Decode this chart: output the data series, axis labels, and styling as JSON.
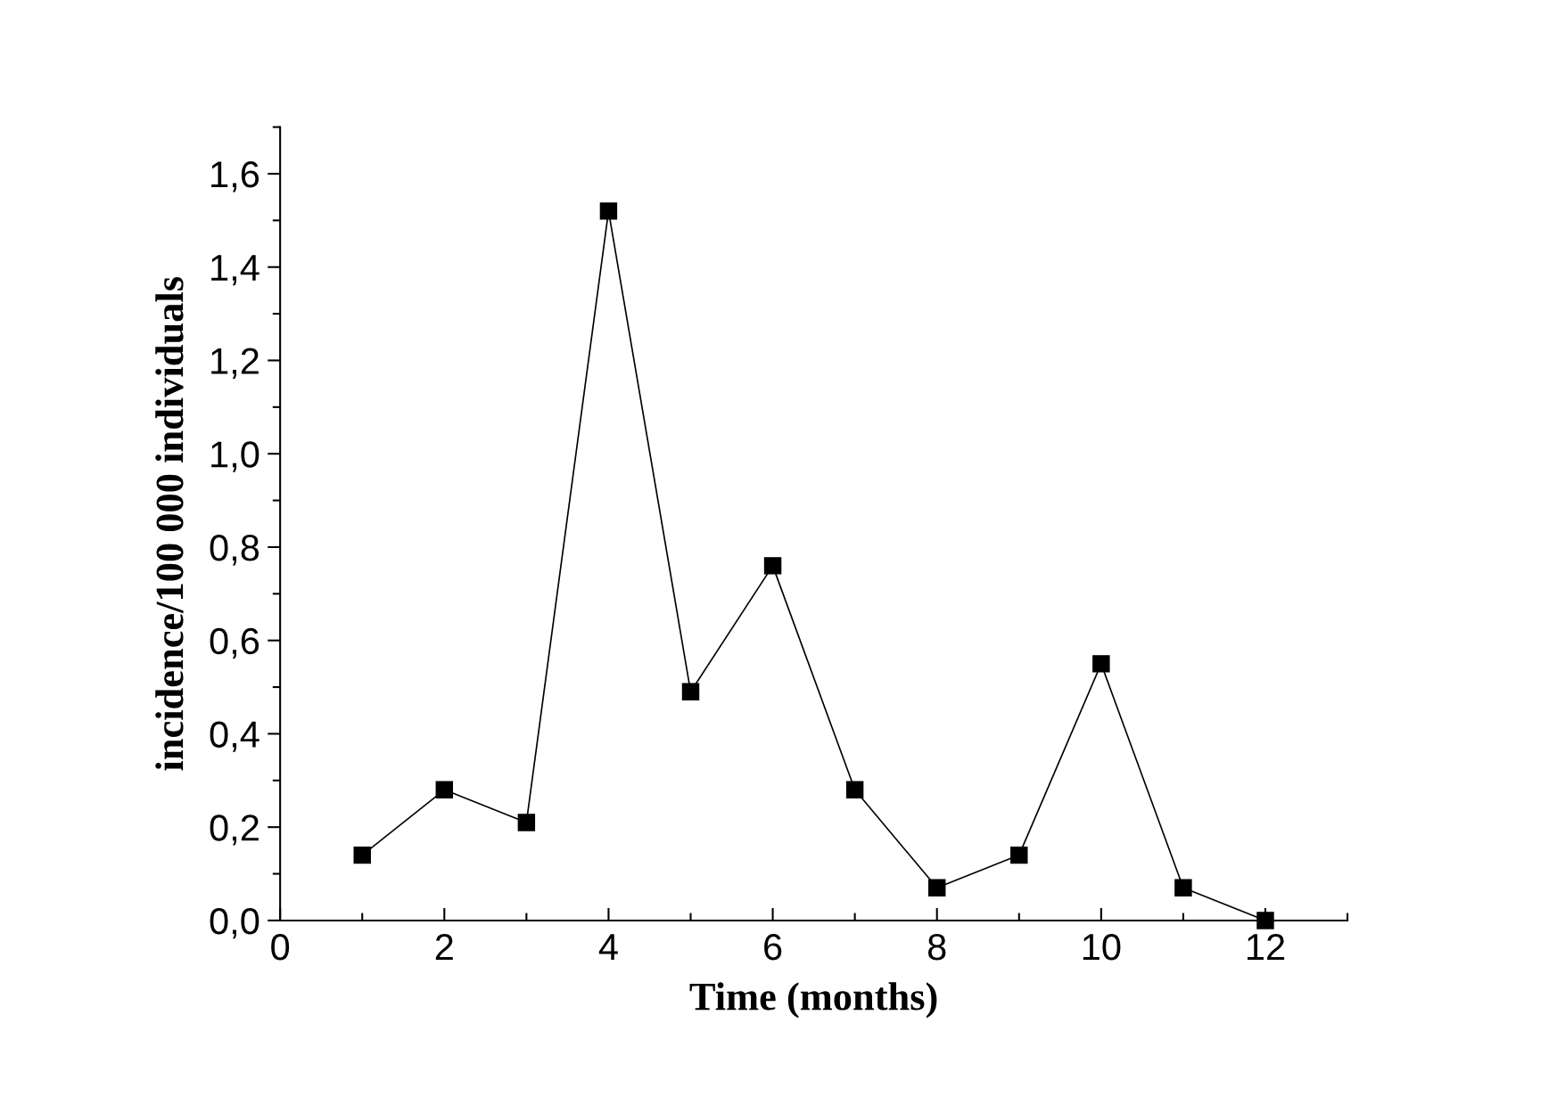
{
  "chart_data": {
    "type": "line",
    "xlabel": "Time (months)",
    "ylabel": "incidence/100 000 individuals",
    "x": [
      1,
      2,
      3,
      4,
      5,
      6,
      7,
      8,
      9,
      10,
      11,
      12
    ],
    "series": [
      {
        "color": "#000000",
        "values": [
          0.14,
          0.28,
          0.21,
          1.52,
          0.49,
          0.76,
          0.28,
          0.07,
          0.14,
          0.55,
          0.07,
          0.0
        ]
      }
    ],
    "marker": "square",
    "line_style": "solid",
    "grid": false,
    "legend": false,
    "xlim": [
      0,
      13
    ],
    "xticks": [
      0,
      {
        "value": 1,
        "label": null
      },
      2,
      {
        "value": 3,
        "label": null
      },
      4,
      {
        "value": 5,
        "label": null
      },
      6,
      {
        "value": 7,
        "label": null
      },
      8,
      {
        "value": 9,
        "label": null
      },
      10,
      {
        "value": 11,
        "label": null
      },
      12,
      {
        "value": 13,
        "label": null
      }
    ],
    "ylim": [
      0,
      1.7
    ],
    "yticks": [
      {
        "value": 0,
        "label": "0,0"
      },
      {
        "value": 0.1,
        "label": null
      },
      {
        "value": 0.2,
        "label": "0,2"
      },
      {
        "value": 0.3,
        "label": null
      },
      {
        "value": 0.4,
        "label": "0,4"
      },
      {
        "value": 0.5,
        "label": null
      },
      {
        "value": 0.6,
        "label": "0,6"
      },
      {
        "value": 0.7,
        "label": null
      },
      {
        "value": 0.8,
        "label": "0,8"
      },
      {
        "value": 0.9,
        "label": null
      },
      {
        "value": 1.0,
        "label": "1,0"
      },
      {
        "value": 1.1,
        "label": null
      },
      {
        "value": 1.2,
        "label": "1,2"
      },
      {
        "value": 1.3,
        "label": null
      },
      {
        "value": 1.4,
        "label": "1,4"
      },
      {
        "value": 1.5,
        "label": null
      },
      {
        "value": 1.6,
        "label": "1,6"
      },
      {
        "value": 1.7,
        "label": null
      }
    ]
  }
}
